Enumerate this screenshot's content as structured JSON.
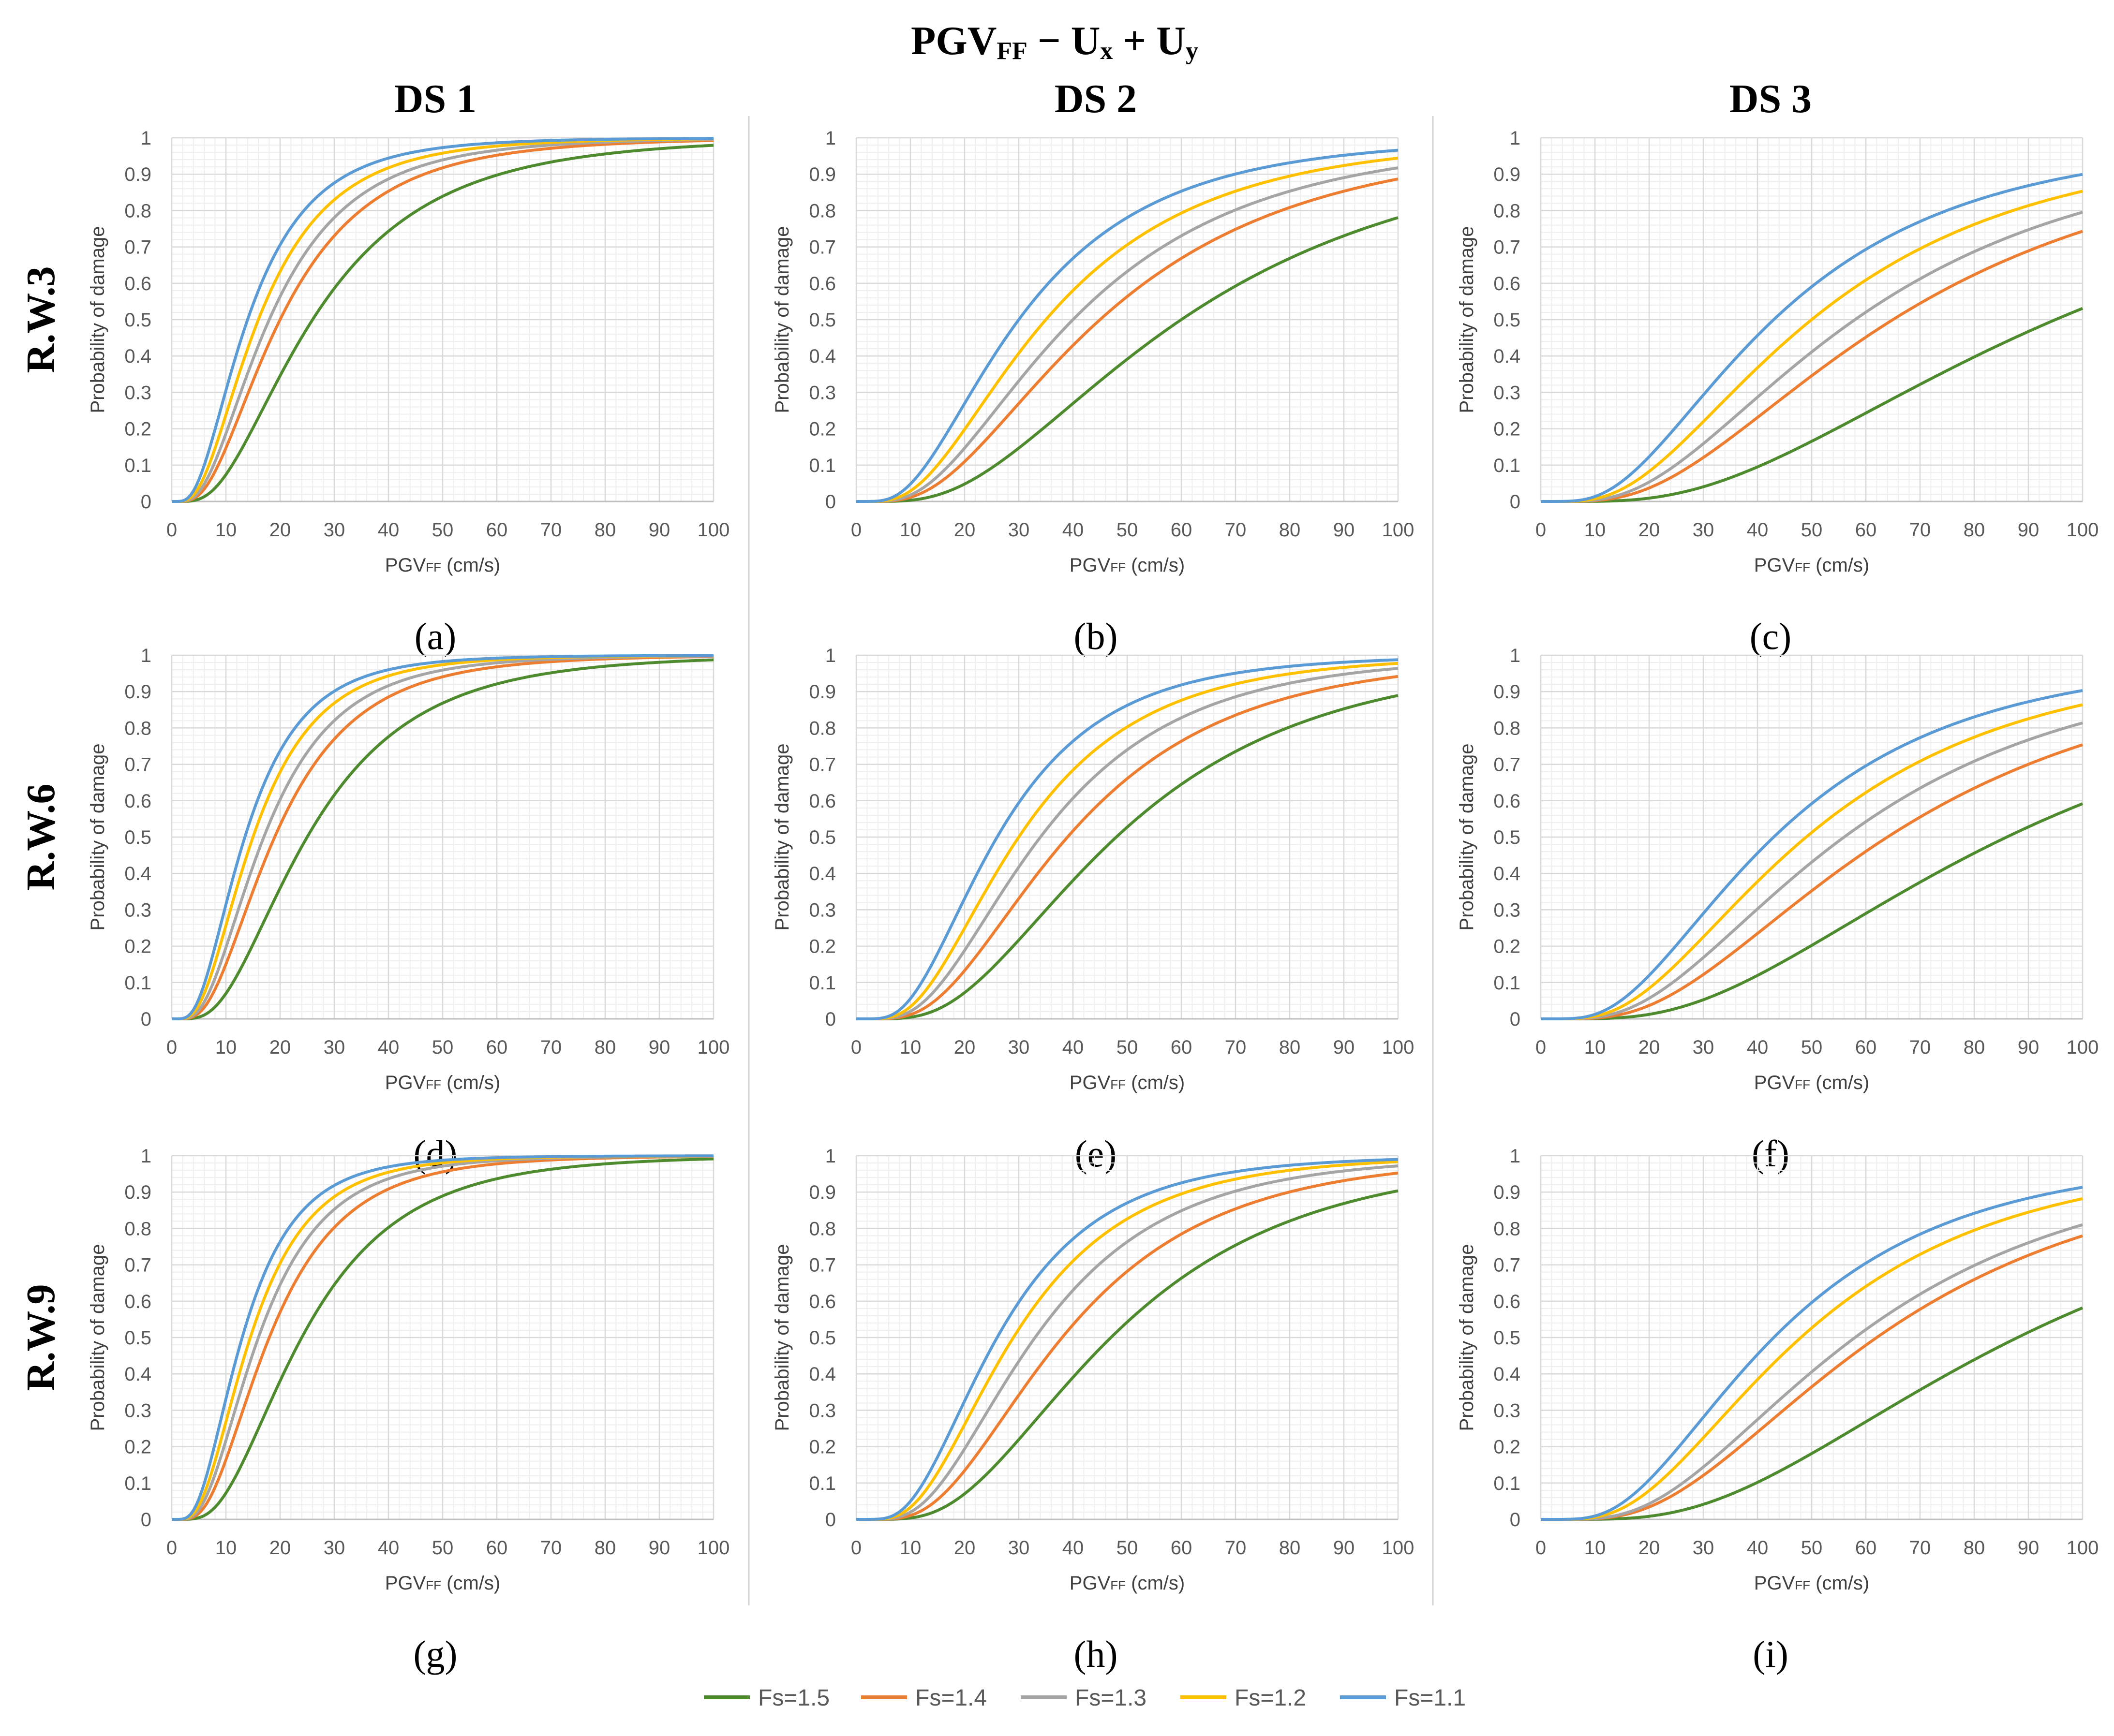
{
  "figure": {
    "title": {
      "pre": "PGV",
      "sub1": "FF",
      "mid": " − U",
      "sub2": "x",
      "mid2": " + U",
      "sub3": "y"
    },
    "column_headers": [
      "DS 1",
      "DS 2",
      "DS 3"
    ],
    "row_labels": [
      "R.W.3",
      "R.W.6",
      "R.W.9"
    ],
    "panel_letters": [
      "(a)",
      "(b)",
      "(c)",
      "(d)",
      "(e)",
      "(f)",
      "(g)",
      "(h)",
      "(i)"
    ],
    "legend": [
      "Fs=1.5",
      "Fs=1.4",
      "Fs=1.3",
      "Fs=1.2",
      "Fs=1.1"
    ],
    "colors": {
      "Fs=1.5": "#4e8a2e",
      "Fs=1.4": "#ed7d31",
      "Fs=1.3": "#a5a5a5",
      "Fs=1.2": "#ffc000",
      "Fs=1.1": "#5b9bd5",
      "grid_major": "#d9d9d9",
      "grid_minor": "#efefef",
      "axis_text": "#595959",
      "divider": "#d0d0d0"
    }
  },
  "chart_data": [
    {
      "panel": "(a)",
      "row": "R.W.3",
      "damage_state": "DS 1",
      "type": "line",
      "xlabel": {
        "pre": "PGV",
        "sub": "FF",
        "post": " (cm/s)"
      },
      "ylabel": "Probability of damage",
      "xlim": [
        0,
        100
      ],
      "ylim": [
        0,
        1
      ],
      "xticks": [
        "0",
        "10",
        "20",
        "30",
        "40",
        "50",
        "60",
        "70",
        "80",
        "90",
        "100"
      ],
      "yticks": [
        "0",
        "0.1",
        "0.2",
        "0.3",
        "0.4",
        "0.5",
        "0.6",
        "0.7",
        "0.8",
        "0.9",
        "1"
      ],
      "series": [
        {
          "name": "Fs=1.5",
          "median": 26,
          "beta": 0.66
        },
        {
          "name": "Fs=1.4",
          "median": 20,
          "beta": 0.66
        },
        {
          "name": "Fs=1.3",
          "median": 18,
          "beta": 0.66
        },
        {
          "name": "Fs=1.2",
          "median": 16,
          "beta": 0.66
        },
        {
          "name": "Fs=1.1",
          "median": 14,
          "beta": 0.66
        }
      ]
    },
    {
      "panel": "(b)",
      "row": "R.W.3",
      "damage_state": "DS 2",
      "type": "line",
      "xlabel": {
        "pre": "PGV",
        "sub": "FF",
        "post": " (cm/s)"
      },
      "ylabel": "Probability of damage",
      "xlim": [
        0,
        100
      ],
      "ylim": [
        0,
        1
      ],
      "xticks": [
        "0",
        "10",
        "20",
        "30",
        "40",
        "50",
        "60",
        "70",
        "80",
        "90",
        "100"
      ],
      "yticks": [
        "0",
        "0.1",
        "0.2",
        "0.3",
        "0.4",
        "0.5",
        "0.6",
        "0.7",
        "0.8",
        "0.9",
        "1"
      ],
      "series": [
        {
          "name": "Fs=1.5",
          "median": 60,
          "beta": 0.66
        },
        {
          "name": "Fs=1.4",
          "median": 45,
          "beta": 0.66
        },
        {
          "name": "Fs=1.3",
          "median": 40,
          "beta": 0.66
        },
        {
          "name": "Fs=1.2",
          "median": 35,
          "beta": 0.66
        },
        {
          "name": "Fs=1.1",
          "median": 30,
          "beta": 0.66
        }
      ]
    },
    {
      "panel": "(c)",
      "row": "R.W.3",
      "damage_state": "DS 3",
      "type": "line",
      "xlabel": {
        "pre": "PGV",
        "sub": "FF",
        "post": " (cm/s)"
      },
      "ylabel": "Probability of damage",
      "xlim": [
        0,
        100
      ],
      "ylim": [
        0,
        1
      ],
      "xticks": [
        "0",
        "10",
        "20",
        "30",
        "40",
        "50",
        "60",
        "70",
        "80",
        "90",
        "100"
      ],
      "yticks": [
        "0",
        "0.1",
        "0.2",
        "0.3",
        "0.4",
        "0.5",
        "0.6",
        "0.7",
        "0.8",
        "0.9",
        "1"
      ],
      "series": [
        {
          "name": "Fs=1.5",
          "median": 95,
          "beta": 0.66
        },
        {
          "name": "Fs=1.4",
          "median": 65,
          "beta": 0.66
        },
        {
          "name": "Fs=1.3",
          "median": 58,
          "beta": 0.66
        },
        {
          "name": "Fs=1.2",
          "median": 50,
          "beta": 0.66
        },
        {
          "name": "Fs=1.1",
          "median": 43,
          "beta": 0.66
        }
      ]
    },
    {
      "panel": "(d)",
      "row": "R.W.6",
      "damage_state": "DS 1",
      "type": "line",
      "xlabel": {
        "pre": "PGV",
        "sub": "FF",
        "post": " (cm/s)"
      },
      "ylabel": "Probability of damage",
      "xlim": [
        0,
        100
      ],
      "ylim": [
        0,
        1
      ],
      "xticks": [
        "0",
        "10",
        "20",
        "30",
        "40",
        "50",
        "60",
        "70",
        "80",
        "90",
        "100"
      ],
      "yticks": [
        "0",
        "0.1",
        "0.2",
        "0.3",
        "0.4",
        "0.5",
        "0.6",
        "0.7",
        "0.8",
        "0.9",
        "1"
      ],
      "series": [
        {
          "name": "Fs=1.5",
          "median": 25,
          "beta": 0.62
        },
        {
          "name": "Fs=1.4",
          "median": 19,
          "beta": 0.62
        },
        {
          "name": "Fs=1.3",
          "median": 17,
          "beta": 0.62
        },
        {
          "name": "Fs=1.2",
          "median": 15,
          "beta": 0.62
        },
        {
          "name": "Fs=1.1",
          "median": 13.5,
          "beta": 0.62
        }
      ]
    },
    {
      "panel": "(e)",
      "row": "R.W.6",
      "damage_state": "DS 2",
      "type": "line",
      "xlabel": {
        "pre": "PGV",
        "sub": "FF",
        "post": " (cm/s)"
      },
      "ylabel": "Probability of damage",
      "xlim": [
        0,
        100
      ],
      "ylim": [
        0,
        1
      ],
      "xticks": [
        "0",
        "10",
        "20",
        "30",
        "40",
        "50",
        "60",
        "70",
        "80",
        "90",
        "100"
      ],
      "yticks": [
        "0",
        "0.1",
        "0.2",
        "0.3",
        "0.4",
        "0.5",
        "0.6",
        "0.7",
        "0.8",
        "0.9",
        "1"
      ],
      "series": [
        {
          "name": "Fs=1.5",
          "median": 48,
          "beta": 0.6
        },
        {
          "name": "Fs=1.4",
          "median": 39,
          "beta": 0.6
        },
        {
          "name": "Fs=1.3",
          "median": 34,
          "beta": 0.6
        },
        {
          "name": "Fs=1.2",
          "median": 30,
          "beta": 0.6
        },
        {
          "name": "Fs=1.1",
          "median": 26,
          "beta": 0.6
        }
      ]
    },
    {
      "panel": "(f)",
      "row": "R.W.6",
      "damage_state": "DS 3",
      "type": "line",
      "xlabel": {
        "pre": "PGV",
        "sub": "FF",
        "post": " (cm/s)"
      },
      "ylabel": "Probability of damage",
      "xlim": [
        0,
        100
      ],
      "ylim": [
        0,
        1
      ],
      "xticks": [
        "0",
        "10",
        "20",
        "30",
        "40",
        "50",
        "60",
        "70",
        "80",
        "90",
        "100"
      ],
      "yticks": [
        "0",
        "0.1",
        "0.2",
        "0.3",
        "0.4",
        "0.5",
        "0.6",
        "0.7",
        "0.8",
        "0.9",
        "1"
      ],
      "series": [
        {
          "name": "Fs=1.5",
          "median": 86,
          "beta": 0.65
        },
        {
          "name": "Fs=1.4",
          "median": 64,
          "beta": 0.65
        },
        {
          "name": "Fs=1.3",
          "median": 56,
          "beta": 0.65
        },
        {
          "name": "Fs=1.2",
          "median": 49,
          "beta": 0.65
        },
        {
          "name": "Fs=1.1",
          "median": 43,
          "beta": 0.65
        }
      ]
    },
    {
      "panel": "(g)",
      "row": "R.W.9",
      "damage_state": "DS 1",
      "type": "line",
      "xlabel": {
        "pre": "PGV",
        "sub": "FF",
        "post": " (cm/s)"
      },
      "ylabel": "Probability of damage",
      "xlim": [
        0,
        100
      ],
      "ylim": [
        0,
        1
      ],
      "xticks": [
        "0",
        "10",
        "20",
        "30",
        "40",
        "50",
        "60",
        "70",
        "80",
        "90",
        "100"
      ],
      "yticks": [
        "0",
        "0.1",
        "0.2",
        "0.3",
        "0.4",
        "0.5",
        "0.6",
        "0.7",
        "0.8",
        "0.9",
        "1"
      ],
      "series": [
        {
          "name": "Fs=1.5",
          "median": 24,
          "beta": 0.6
        },
        {
          "name": "Fs=1.4",
          "median": 18,
          "beta": 0.6
        },
        {
          "name": "Fs=1.3",
          "median": 16,
          "beta": 0.6
        },
        {
          "name": "Fs=1.2",
          "median": 14.5,
          "beta": 0.6
        },
        {
          "name": "Fs=1.1",
          "median": 13,
          "beta": 0.6
        }
      ]
    },
    {
      "panel": "(h)",
      "row": "R.W.9",
      "damage_state": "DS 2",
      "type": "line",
      "xlabel": {
        "pre": "PGV",
        "sub": "FF",
        "post": " (cm/s)"
      },
      "ylabel": "Probability of damage",
      "xlim": [
        0,
        100
      ],
      "ylim": [
        0,
        1
      ],
      "xticks": [
        "0",
        "10",
        "20",
        "30",
        "40",
        "50",
        "60",
        "70",
        "80",
        "90",
        "100"
      ],
      "yticks": [
        "0",
        "0.1",
        "0.2",
        "0.3",
        "0.4",
        "0.5",
        "0.6",
        "0.7",
        "0.8",
        "0.9",
        "1"
      ],
      "series": [
        {
          "name": "Fs=1.5",
          "median": 47,
          "beta": 0.58
        },
        {
          "name": "Fs=1.4",
          "median": 38,
          "beta": 0.58
        },
        {
          "name": "Fs=1.3",
          "median": 33,
          "beta": 0.58
        },
        {
          "name": "Fs=1.2",
          "median": 29,
          "beta": 0.58
        },
        {
          "name": "Fs=1.1",
          "median": 26,
          "beta": 0.58
        }
      ]
    },
    {
      "panel": "(i)",
      "row": "R.W.9",
      "damage_state": "DS 3",
      "type": "line",
      "xlabel": {
        "pre": "PGV",
        "sub": "FF",
        "post": " (cm/s)"
      },
      "ylabel": "Probability of damage",
      "xlim": [
        0,
        100
      ],
      "ylim": [
        0,
        1
      ],
      "xticks": [
        "0",
        "10",
        "20",
        "30",
        "40",
        "50",
        "60",
        "70",
        "80",
        "90",
        "100"
      ],
      "yticks": [
        "0",
        "0.1",
        "0.2",
        "0.3",
        "0.4",
        "0.5",
        "0.6",
        "0.7",
        "0.8",
        "0.9",
        "1"
      ],
      "series": [
        {
          "name": "Fs=1.5",
          "median": 88,
          "beta": 0.62
        },
        {
          "name": "Fs=1.4",
          "median": 62,
          "beta": 0.62
        },
        {
          "name": "Fs=1.3",
          "median": 58,
          "beta": 0.62
        },
        {
          "name": "Fs=1.2",
          "median": 48,
          "beta": 0.62
        },
        {
          "name": "Fs=1.1",
          "median": 43,
          "beta": 0.62
        }
      ]
    }
  ]
}
